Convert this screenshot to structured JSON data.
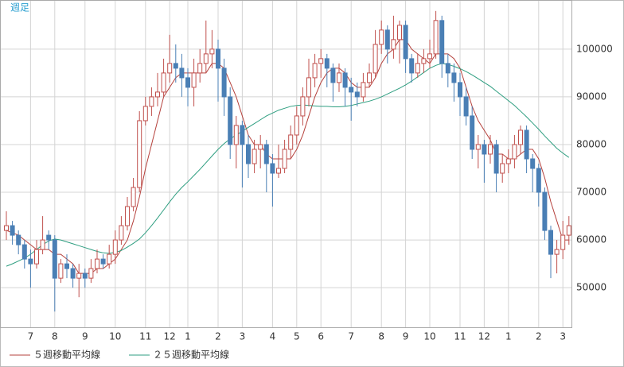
{
  "chart_data": {
    "type": "candlestick",
    "title": "週足",
    "categories": [
      null,
      null,
      null,
      null,
      "7",
      null,
      null,
      null,
      "8",
      null,
      null,
      null,
      null,
      "9",
      null,
      null,
      null,
      null,
      "10",
      null,
      null,
      null,
      null,
      "11",
      null,
      null,
      null,
      "12",
      null,
      null,
      "1",
      null,
      null,
      null,
      null,
      "2",
      null,
      null,
      null,
      "3",
      null,
      null,
      null,
      null,
      "4",
      null,
      null,
      null,
      "5",
      null,
      null,
      null,
      "6",
      null,
      null,
      null,
      null,
      "7",
      null,
      null,
      null,
      null,
      "8",
      null,
      null,
      null,
      "9",
      null,
      null,
      null,
      "10",
      null,
      null,
      null,
      null,
      "11",
      null,
      null,
      null,
      "12",
      null,
      null,
      null,
      "1",
      null,
      null,
      null,
      null,
      "2",
      null,
      null,
      null,
      "3",
      null
    ],
    "open": [
      62000,
      63000,
      61000,
      59000,
      56000,
      55000,
      58000,
      61000,
      60000,
      52000,
      55000,
      54000,
      52000,
      53000,
      52000,
      54000,
      56000,
      55000,
      57000,
      60000,
      63000,
      67000,
      71000,
      85000,
      88000,
      90000,
      91000,
      95000,
      97000,
      96000,
      94000,
      92000,
      95000,
      97000,
      99000,
      100000,
      96000,
      90000,
      80000,
      84000,
      80000,
      76000,
      79000,
      80000,
      76000,
      74000,
      75000,
      79000,
      82000,
      86000,
      90000,
      94000,
      97000,
      98000,
      96000,
      93000,
      95000,
      92000,
      91000,
      90000,
      93000,
      95000,
      101000,
      104000,
      100000,
      102000,
      105000,
      98000,
      95000,
      97000,
      98000,
      99000,
      106000,
      97000,
      95000,
      93000,
      90000,
      86000,
      79000,
      80000,
      78000,
      80000,
      74000,
      76000,
      77000,
      80000,
      83000,
      77000,
      75000,
      70000,
      62000,
      57000,
      58000,
      61000
    ],
    "high": [
      66000,
      64000,
      62000,
      60000,
      58000,
      60000,
      65000,
      62000,
      61000,
      56000,
      57000,
      55000,
      55000,
      54000,
      56000,
      58000,
      57000,
      59000,
      62000,
      65000,
      69000,
      73000,
      87000,
      90000,
      92000,
      95000,
      98000,
      103000,
      101000,
      99000,
      96000,
      98000,
      100000,
      106000,
      104000,
      102000,
      98000,
      92000,
      86000,
      85000,
      82000,
      81000,
      82000,
      81000,
      78000,
      80000,
      81000,
      84000,
      88000,
      92000,
      98000,
      99000,
      100000,
      99000,
      97000,
      97000,
      96000,
      94000,
      93000,
      95000,
      97000,
      104000,
      106000,
      105000,
      107000,
      106000,
      106000,
      99000,
      99000,
      100000,
      102000,
      108000,
      107000,
      99000,
      97000,
      95000,
      92000,
      88000,
      82000,
      81000,
      82000,
      81000,
      78000,
      79000,
      82000,
      84000,
      84000,
      78000,
      76000,
      71000,
      63000,
      60000,
      64000,
      65000
    ],
    "low": [
      60000,
      59000,
      57000,
      54000,
      50000,
      54000,
      57000,
      58000,
      45000,
      51000,
      52000,
      50000,
      48000,
      50000,
      51000,
      53000,
      54000,
      54000,
      55000,
      59000,
      62000,
      66000,
      70000,
      84000,
      86000,
      88000,
      90000,
      93000,
      93000,
      90000,
      88000,
      88000,
      93000,
      95000,
      96000,
      89000,
      86000,
      77000,
      75000,
      71000,
      73000,
      74000,
      75000,
      70000,
      67000,
      73000,
      74000,
      77000,
      80000,
      84000,
      88000,
      92000,
      94000,
      92000,
      89000,
      91000,
      88000,
      85000,
      88000,
      89000,
      92000,
      94000,
      99000,
      97000,
      98000,
      97000,
      95000,
      93000,
      94000,
      95000,
      96000,
      98000,
      94000,
      92000,
      89000,
      86000,
      84000,
      77000,
      75000,
      72000,
      76000,
      70000,
      72000,
      74000,
      75000,
      78000,
      74000,
      70000,
      67000,
      60000,
      52000,
      53000,
      56000,
      59000
    ],
    "close": [
      63000,
      61000,
      59000,
      56000,
      55000,
      58000,
      60000,
      60000,
      52000,
      55000,
      54000,
      52000,
      53000,
      52000,
      54000,
      56000,
      55000,
      57000,
      60000,
      63000,
      67000,
      71000,
      85000,
      88000,
      90000,
      91000,
      95000,
      97000,
      96000,
      94000,
      92000,
      95000,
      97000,
      99000,
      100000,
      96000,
      90000,
      80000,
      84000,
      80000,
      76000,
      79000,
      80000,
      76000,
      74000,
      75000,
      79000,
      82000,
      86000,
      90000,
      94000,
      97000,
      98000,
      96000,
      93000,
      95000,
      92000,
      91000,
      90000,
      93000,
      95000,
      101000,
      104000,
      100000,
      102000,
      105000,
      98000,
      95000,
      97000,
      98000,
      99000,
      106000,
      97000,
      95000,
      93000,
      90000,
      86000,
      79000,
      80000,
      78000,
      80000,
      74000,
      76000,
      77000,
      80000,
      83000,
      77000,
      75000,
      70000,
      62000,
      57000,
      58000,
      61000,
      63000
    ],
    "up_color": "#c0504d",
    "down_color": "#4a7fb5",
    "series": [
      {
        "name": "５週移動平均線",
        "color": "#b5413c",
        "values": [
          62000,
          61500,
          61000,
          60000,
          59000,
          58000,
          58000,
          58000,
          57000,
          57000,
          56000,
          55000,
          53000,
          53000,
          53000,
          54000,
          54000,
          55000,
          56000,
          58000,
          60000,
          64000,
          69000,
          75000,
          80000,
          85000,
          90000,
          92000,
          94000,
          95000,
          95000,
          95000,
          95000,
          95000,
          97000,
          97000,
          96000,
          93000,
          90000,
          86000,
          82000,
          80000,
          80000,
          78000,
          77000,
          77000,
          77000,
          77000,
          79000,
          82000,
          86000,
          90000,
          93000,
          95000,
          96000,
          96000,
          95000,
          93000,
          92000,
          92000,
          92000,
          94000,
          97000,
          99000,
          100000,
          102000,
          102000,
          100000,
          99000,
          98000,
          97000,
          99000,
          99000,
          99000,
          98000,
          96000,
          92000,
          88000,
          85000,
          83000,
          81000,
          78000,
          78000,
          77000,
          77000,
          78000,
          79000,
          79000,
          77000,
          73000,
          68000,
          64000,
          60000,
          60000
        ]
      },
      {
        "name": "２５週移動平均線",
        "color": "#2e9e80",
        "values": [
          54500,
          55000,
          55600,
          56200,
          57000,
          58000,
          59000,
          59800,
          60200,
          60000,
          59600,
          59200,
          58800,
          58400,
          58000,
          57600,
          57300,
          57200,
          57400,
          57800,
          58500,
          59300,
          60200,
          61500,
          63000,
          64600,
          66300,
          68000,
          69600,
          71000,
          72200,
          73500,
          74800,
          76200,
          77600,
          79000,
          80200,
          81200,
          82000,
          82800,
          83600,
          84400,
          85200,
          86000,
          86600,
          87200,
          87600,
          88000,
          88200,
          88300,
          88200,
          88100,
          88000,
          88000,
          87900,
          87900,
          88000,
          88200,
          88500,
          88800,
          89100,
          89500,
          90000,
          90600,
          91200,
          91800,
          92500,
          93300,
          94200,
          95100,
          96000,
          96600,
          97000,
          96800,
          96400,
          95900,
          95300,
          94600,
          93800,
          93000,
          92200,
          91200,
          90200,
          89200,
          88200,
          87000,
          85800,
          84500,
          83200,
          81800,
          80500,
          79200,
          78200,
          77300
        ]
      }
    ],
    "ylim": [
      41700,
      110300
    ],
    "yticks": [
      50000,
      60000,
      70000,
      80000,
      90000,
      100000
    ],
    "grid": true
  }
}
